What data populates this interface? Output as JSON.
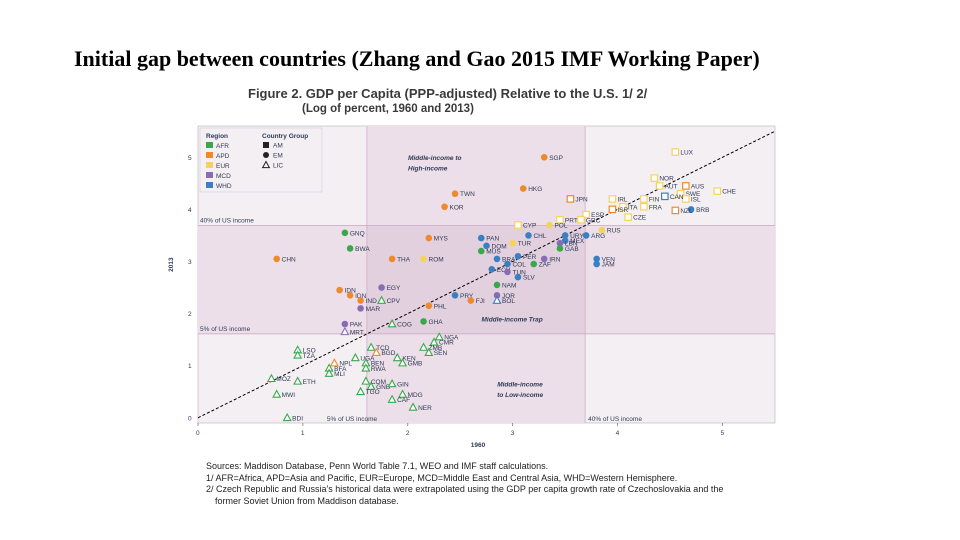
{
  "slide": {
    "title": "Initial gap between countries (Zhang and Gao 2015 IMF Working Paper)"
  },
  "figure": {
    "title": "Figure 2. GDP per Capita (PPP-adjusted) Relative to the U.S. 1/ 2/",
    "subtitle": "(Log of percent, 1960 and 2013)"
  },
  "notes": [
    "Sources: Maddison Database, Penn World Table 7.1, WEO and IMF staff calculations.",
    "1/ AFR=Africa, APD=Asia and Pacific, EUR=Europe, MCD=Middle East and Central Asia, WHD=Western Hemisphere.",
    "2/ Czech Republic and Russia's historical data were extrapolated using the GDP per capita growth rate of Czechoslovakia and the",
    "former Soviet Union from Maddison database."
  ],
  "chart_data": {
    "type": "scatter",
    "title": "GDP per Capita (PPP-adjusted) Relative to the U.S.",
    "xlabel": "1960",
    "ylabel": "2013",
    "xlim": [
      0,
      5.5
    ],
    "ylim": [
      -0.1,
      5.6
    ],
    "xticks": [
      0,
      1,
      2,
      3,
      4,
      5
    ],
    "yticks": [
      0,
      1,
      2,
      3,
      4,
      5
    ],
    "colors": {
      "AFR": "#3aa84a",
      "APD": "#ee8a2c",
      "EUR": "#f5d35a",
      "MCD": "#8a6bb5",
      "WHD": "#3a7fc4",
      "line": "#000000",
      "shade": "#ecdfe9",
      "ref": "#c9a6c0",
      "annot": "#d9342b"
    },
    "legend": {
      "region_title": "Region",
      "regions": [
        "AFR",
        "APD",
        "EUR",
        "MCD",
        "WHD"
      ],
      "group_title": "Country Group",
      "groups": [
        {
          "label": "AM",
          "shape": "square"
        },
        {
          "label": "EM",
          "shape": "circle"
        },
        {
          "label": "LIC",
          "shape": "triangle"
        }
      ]
    },
    "reference_lines": [
      {
        "label": "40% of US income",
        "axis": "y",
        "value": 3.69
      },
      {
        "label": "5% of US income",
        "axis": "y",
        "value": 1.61
      },
      {
        "label": "5% of US income",
        "axis": "x",
        "value": 1.61
      },
      {
        "label": "40% of US income",
        "axis": "x",
        "value": 3.69
      }
    ],
    "annotations": [
      {
        "text": "Middle-income to",
        "x": 2.25,
        "y": 4.95
      },
      {
        "text": "High-income",
        "x": 2.25,
        "y": 4.75
      },
      {
        "text": "Middle-income Trap",
        "x": 2.95,
        "y": 1.85
      },
      {
        "text": "Middle-income",
        "x": 3.1,
        "y": 0.6
      },
      {
        "text": "to Low-income",
        "x": 3.1,
        "y": 0.4
      }
    ],
    "points": [
      {
        "label": "LUX",
        "x": 4.55,
        "y": 5.1,
        "region": "EUR",
        "group": "AM"
      },
      {
        "label": "SGP",
        "x": 3.3,
        "y": 5.0,
        "region": "APD",
        "group": "EM"
      },
      {
        "label": "NOR",
        "x": 4.35,
        "y": 4.6,
        "region": "EUR",
        "group": "AM"
      },
      {
        "label": "AUT",
        "x": 4.4,
        "y": 4.45,
        "region": "EUR",
        "group": "AM"
      },
      {
        "label": "AUS",
        "x": 4.65,
        "y": 4.45,
        "region": "APD",
        "group": "AM"
      },
      {
        "label": "CHE",
        "x": 4.95,
        "y": 4.35,
        "region": "EUR",
        "group": "AM"
      },
      {
        "label": "SWE",
        "x": 4.6,
        "y": 4.3,
        "region": "EUR",
        "group": "AM"
      },
      {
        "label": "ISL",
        "x": 4.65,
        "y": 4.2,
        "region": "EUR",
        "group": "AM"
      },
      {
        "label": "CAN",
        "x": 4.45,
        "y": 4.25,
        "region": "WHD",
        "group": "AM"
      },
      {
        "label": "HKG",
        "x": 3.1,
        "y": 4.4,
        "region": "APD",
        "group": "EM"
      },
      {
        "label": "TWN",
        "x": 2.45,
        "y": 4.3,
        "region": "APD",
        "group": "EM"
      },
      {
        "label": "JPN",
        "x": 3.55,
        "y": 4.2,
        "region": "APD",
        "group": "AM"
      },
      {
        "label": "IRL",
        "x": 3.95,
        "y": 4.2,
        "region": "EUR",
        "group": "AM"
      },
      {
        "label": "FIN",
        "x": 4.25,
        "y": 4.2,
        "region": "EUR",
        "group": "AM"
      },
      {
        "label": "ITA",
        "x": 4.05,
        "y": 4.05,
        "region": "EUR",
        "group": "AM"
      },
      {
        "label": "ISR",
        "x": 3.95,
        "y": 4.0,
        "region": "APD",
        "group": "AM"
      },
      {
        "label": "FRA",
        "x": 4.25,
        "y": 4.05,
        "region": "EUR",
        "group": "AM"
      },
      {
        "label": "BRB",
        "x": 4.7,
        "y": 4.0,
        "region": "WHD",
        "group": "EM"
      },
      {
        "label": "NZL",
        "x": 4.55,
        "y": 3.98,
        "region": "APD",
        "group": "AM"
      },
      {
        "label": "KOR",
        "x": 2.35,
        "y": 4.05,
        "region": "APD",
        "group": "EM"
      },
      {
        "label": "ESP",
        "x": 3.7,
        "y": 3.9,
        "region": "EUR",
        "group": "AM"
      },
      {
        "label": "CZE",
        "x": 4.1,
        "y": 3.85,
        "region": "EUR",
        "group": "AM"
      },
      {
        "label": "PRT",
        "x": 3.45,
        "y": 3.8,
        "region": "EUR",
        "group": "AM"
      },
      {
        "label": "GRC",
        "x": 3.65,
        "y": 3.8,
        "region": "EUR",
        "group": "AM"
      },
      {
        "label": "CYP",
        "x": 3.05,
        "y": 3.7,
        "region": "EUR",
        "group": "AM"
      },
      {
        "label": "POL",
        "x": 3.35,
        "y": 3.7,
        "region": "EUR",
        "group": "EM"
      },
      {
        "label": "RUS",
        "x": 3.85,
        "y": 3.6,
        "region": "EUR",
        "group": "EM"
      },
      {
        "label": "CHL",
        "x": 3.15,
        "y": 3.5,
        "region": "WHD",
        "group": "EM"
      },
      {
        "label": "URY",
        "x": 3.5,
        "y": 3.5,
        "region": "WHD",
        "group": "EM"
      },
      {
        "label": "ARG",
        "x": 3.7,
        "y": 3.5,
        "region": "WHD",
        "group": "EM"
      },
      {
        "label": "MEX",
        "x": 3.5,
        "y": 3.4,
        "region": "WHD",
        "group": "EM"
      },
      {
        "label": "LBN",
        "x": 3.45,
        "y": 3.35,
        "region": "MCD",
        "group": "EM"
      },
      {
        "label": "GAB",
        "x": 3.45,
        "y": 3.25,
        "region": "AFR",
        "group": "EM"
      },
      {
        "label": "GNQ",
        "x": 1.4,
        "y": 3.55,
        "region": "AFR",
        "group": "EM"
      },
      {
        "label": "BWA",
        "x": 1.45,
        "y": 3.25,
        "region": "AFR",
        "group": "EM"
      },
      {
        "label": "MYS",
        "x": 2.2,
        "y": 3.45,
        "region": "APD",
        "group": "EM"
      },
      {
        "label": "PAN",
        "x": 2.7,
        "y": 3.45,
        "region": "WHD",
        "group": "EM"
      },
      {
        "label": "TUR",
        "x": 3.0,
        "y": 3.35,
        "region": "EUR",
        "group": "EM"
      },
      {
        "label": "DOM",
        "x": 2.75,
        "y": 3.3,
        "region": "WHD",
        "group": "EM"
      },
      {
        "label": "MUS",
        "x": 2.7,
        "y": 3.2,
        "region": "AFR",
        "group": "EM"
      },
      {
        "label": "CHN",
        "x": 0.75,
        "y": 3.05,
        "region": "APD",
        "group": "EM"
      },
      {
        "label": "THA",
        "x": 1.85,
        "y": 3.05,
        "region": "APD",
        "group": "EM"
      },
      {
        "label": "ROM",
        "x": 2.15,
        "y": 3.05,
        "region": "EUR",
        "group": "EM"
      },
      {
        "label": "BRA",
        "x": 2.85,
        "y": 3.05,
        "region": "WHD",
        "group": "EM"
      },
      {
        "label": "PER",
        "x": 3.05,
        "y": 3.1,
        "region": "WHD",
        "group": "EM"
      },
      {
        "label": "IRN",
        "x": 3.3,
        "y": 3.05,
        "region": "MCD",
        "group": "EM"
      },
      {
        "label": "COL",
        "x": 2.95,
        "y": 2.95,
        "region": "WHD",
        "group": "EM"
      },
      {
        "label": "ZAF",
        "x": 3.2,
        "y": 2.95,
        "region": "AFR",
        "group": "EM"
      },
      {
        "label": "VEN",
        "x": 3.8,
        "y": 3.05,
        "region": "WHD",
        "group": "EM"
      },
      {
        "label": "JAM",
        "x": 3.8,
        "y": 2.95,
        "region": "WHD",
        "group": "EM"
      },
      {
        "label": "ECU",
        "x": 2.8,
        "y": 2.85,
        "region": "WHD",
        "group": "EM"
      },
      {
        "label": "TUN",
        "x": 2.95,
        "y": 2.8,
        "region": "MCD",
        "group": "EM"
      },
      {
        "label": "SLV",
        "x": 3.05,
        "y": 2.7,
        "region": "WHD",
        "group": "EM"
      },
      {
        "label": "NAM",
        "x": 2.85,
        "y": 2.55,
        "region": "AFR",
        "group": "EM"
      },
      {
        "label": "EGY",
        "x": 1.75,
        "y": 2.5,
        "region": "MCD",
        "group": "EM"
      },
      {
        "label": "IDN",
        "x": 1.35,
        "y": 2.45,
        "region": "APD",
        "group": "EM"
      },
      {
        "label": "IDN",
        "x": 1.45,
        "y": 2.35,
        "region": "APD",
        "group": "EM"
      },
      {
        "label": "IND",
        "x": 1.55,
        "y": 2.25,
        "region": "APD",
        "group": "EM"
      },
      {
        "label": "CPV",
        "x": 1.75,
        "y": 2.25,
        "region": "AFR",
        "group": "LIC"
      },
      {
        "label": "MAR",
        "x": 1.55,
        "y": 2.1,
        "region": "MCD",
        "group": "EM"
      },
      {
        "label": "PRY",
        "x": 2.45,
        "y": 2.35,
        "region": "WHD",
        "group": "EM"
      },
      {
        "label": "JOR",
        "x": 2.85,
        "y": 2.35,
        "region": "MCD",
        "group": "EM"
      },
      {
        "label": "FJI",
        "x": 2.6,
        "y": 2.25,
        "region": "APD",
        "group": "EM"
      },
      {
        "label": "BOL",
        "x": 2.85,
        "y": 2.25,
        "region": "WHD",
        "group": "LIC"
      },
      {
        "label": "PHL",
        "x": 2.2,
        "y": 2.15,
        "region": "APD",
        "group": "EM"
      },
      {
        "label": "PAK",
        "x": 1.4,
        "y": 1.8,
        "region": "MCD",
        "group": "EM"
      },
      {
        "label": "MRT",
        "x": 1.4,
        "y": 1.65,
        "region": "MCD",
        "group": "LIC"
      },
      {
        "label": "COG",
        "x": 1.85,
        "y": 1.8,
        "region": "AFR",
        "group": "LIC"
      },
      {
        "label": "GHA",
        "x": 2.15,
        "y": 1.85,
        "region": "AFR",
        "group": "EM"
      },
      {
        "label": "NGA",
        "x": 2.3,
        "y": 1.55,
        "region": "AFR",
        "group": "LIC"
      },
      {
        "label": "CMR",
        "x": 2.25,
        "y": 1.45,
        "region": "AFR",
        "group": "LIC"
      },
      {
        "label": "ZMB",
        "x": 2.15,
        "y": 1.35,
        "region": "AFR",
        "group": "LIC"
      },
      {
        "label": "SEN",
        "x": 2.2,
        "y": 1.25,
        "region": "AFR",
        "group": "LIC"
      },
      {
        "label": "TCD",
        "x": 1.65,
        "y": 1.35,
        "region": "AFR",
        "group": "LIC"
      },
      {
        "label": "BGD",
        "x": 1.7,
        "y": 1.25,
        "region": "APD",
        "group": "LIC"
      },
      {
        "label": "KEN",
        "x": 1.9,
        "y": 1.15,
        "region": "AFR",
        "group": "LIC"
      },
      {
        "label": "GMB",
        "x": 1.95,
        "y": 1.05,
        "region": "AFR",
        "group": "LIC"
      },
      {
        "label": "UGA",
        "x": 1.5,
        "y": 1.15,
        "region": "AFR",
        "group": "LIC"
      },
      {
        "label": "NPL",
        "x": 1.3,
        "y": 1.05,
        "region": "APD",
        "group": "LIC"
      },
      {
        "label": "BEN",
        "x": 1.6,
        "y": 1.05,
        "region": "AFR",
        "group": "LIC"
      },
      {
        "label": "RWA",
        "x": 1.6,
        "y": 0.95,
        "region": "AFR",
        "group": "LIC"
      },
      {
        "label": "BFA",
        "x": 1.25,
        "y": 0.95,
        "region": "AFR",
        "group": "LIC"
      },
      {
        "label": "MLI",
        "x": 1.25,
        "y": 0.85,
        "region": "AFR",
        "group": "LIC"
      },
      {
        "label": "LSO",
        "x": 0.95,
        "y": 1.3,
        "region": "AFR",
        "group": "LIC"
      },
      {
        "label": "TZA",
        "x": 0.95,
        "y": 1.2,
        "region": "AFR",
        "group": "LIC"
      },
      {
        "label": "MOZ",
        "x": 0.7,
        "y": 0.75,
        "region": "AFR",
        "group": "LIC"
      },
      {
        "label": "ETH",
        "x": 0.95,
        "y": 0.7,
        "region": "AFR",
        "group": "LIC"
      },
      {
        "label": "MWI",
        "x": 0.75,
        "y": 0.45,
        "region": "AFR",
        "group": "LIC"
      },
      {
        "label": "COM",
        "x": 1.6,
        "y": 0.7,
        "region": "AFR",
        "group": "LIC"
      },
      {
        "label": "GNB",
        "x": 1.65,
        "y": 0.6,
        "region": "AFR",
        "group": "LIC"
      },
      {
        "label": "GIN",
        "x": 1.85,
        "y": 0.65,
        "region": "AFR",
        "group": "LIC"
      },
      {
        "label": "TGO",
        "x": 1.55,
        "y": 0.5,
        "region": "AFR",
        "group": "LIC"
      },
      {
        "label": "MDG",
        "x": 1.95,
        "y": 0.45,
        "region": "AFR",
        "group": "LIC"
      },
      {
        "label": "CAF",
        "x": 1.85,
        "y": 0.35,
        "region": "AFR",
        "group": "LIC"
      },
      {
        "label": "NER",
        "x": 2.05,
        "y": 0.2,
        "region": "AFR",
        "group": "LIC"
      },
      {
        "label": "BDI",
        "x": 0.85,
        "y": 0.0,
        "region": "AFR",
        "group": "LIC"
      }
    ]
  }
}
